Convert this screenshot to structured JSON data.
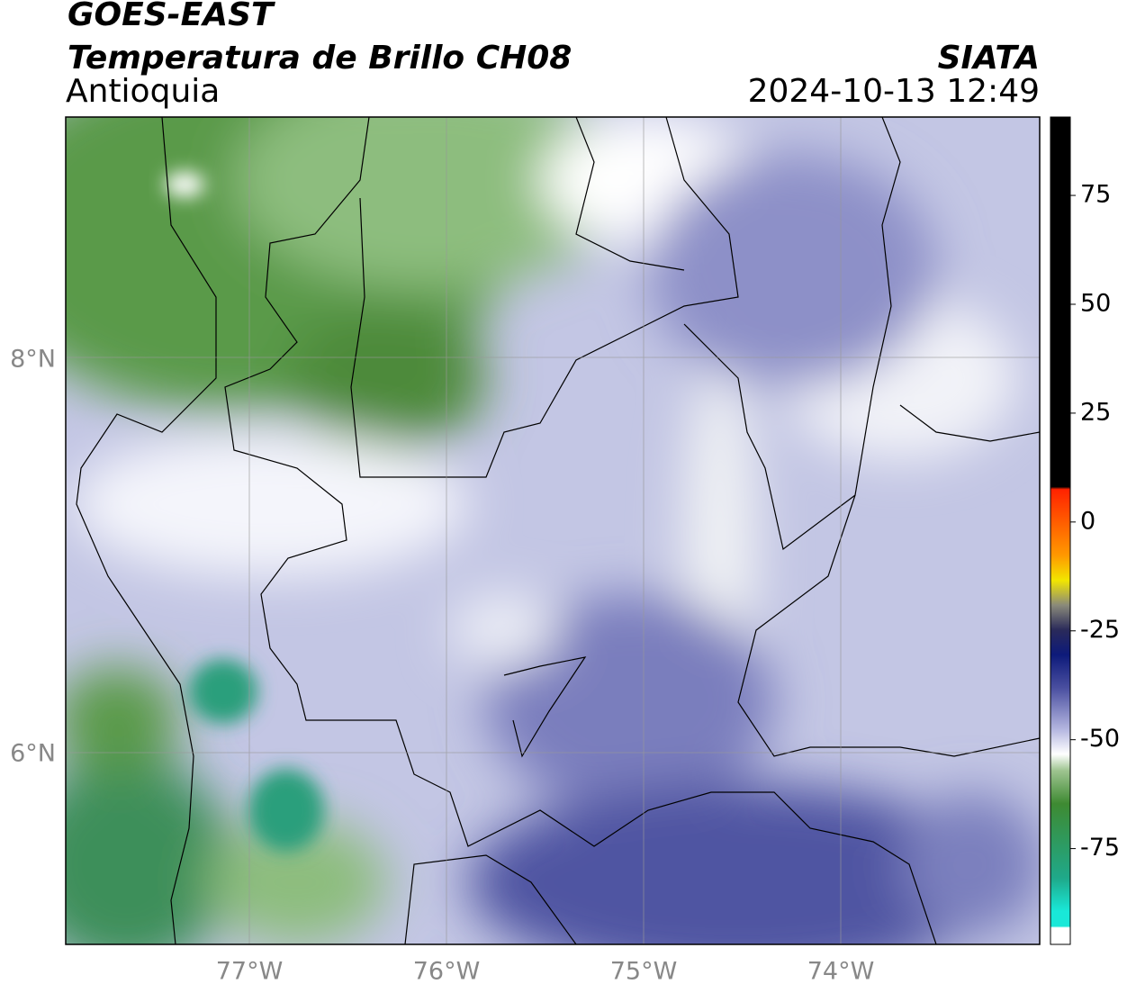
{
  "header": {
    "title": "GOES-EAST",
    "subtitle": "Temperatura de Brillo CH08",
    "region": "Antioquia",
    "source": "SIATA",
    "timestamp": "2024-10-13 12:49"
  },
  "map": {
    "lat_labels": [
      "8°N",
      "6°N"
    ],
    "lon_labels": [
      "77°W",
      "76°W",
      "75°W",
      "74°W"
    ]
  },
  "colorbar": {
    "lim": [
      -97,
      93
    ],
    "ticks": [
      75,
      50,
      25,
      0,
      -25,
      -50,
      -75
    ]
  }
}
